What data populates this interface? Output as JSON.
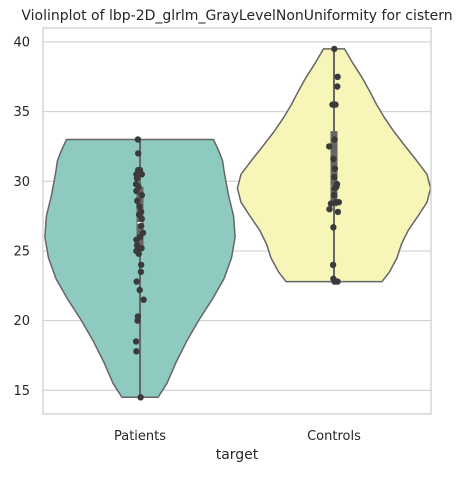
{
  "chart_data": {
    "type": "violin",
    "title": "Violinplot of lbp-2D_glrlm_GrayLevelNonUniformity for cistern",
    "xlabel": "target",
    "ylabel": "",
    "categories": [
      "Patients",
      "Controls"
    ],
    "ylim": [
      13.3,
      41.0
    ],
    "yticks": [
      15,
      20,
      25,
      30,
      35,
      40
    ],
    "grid": true,
    "colors": {
      "Patients": "#8fcac0",
      "Controls": "#f7f6b8",
      "outline": "#666666",
      "points": "#3a3a3a",
      "grid": "#cccccc"
    },
    "series": [
      {
        "name": "Patients",
        "box": {
          "q1": 25.0,
          "median": 27.0,
          "q3": 29.6,
          "whisker_low": 14.5,
          "whisker_high": 33.0
        },
        "violin_profile": [
          [
            14.5,
            0.6
          ],
          [
            15.5,
            0.9
          ],
          [
            17.0,
            1.2
          ],
          [
            18.5,
            1.55
          ],
          [
            20.0,
            1.95
          ],
          [
            21.5,
            2.4
          ],
          [
            23.0,
            2.8
          ],
          [
            24.5,
            3.05
          ],
          [
            26.0,
            3.17
          ],
          [
            27.5,
            3.12
          ],
          [
            29.0,
            2.95
          ],
          [
            30.5,
            2.82
          ],
          [
            31.5,
            2.75
          ],
          [
            32.3,
            2.6
          ],
          [
            33.0,
            2.45
          ]
        ],
        "points": [
          [
            0.02,
            14.5
          ],
          [
            -0.12,
            17.8
          ],
          [
            -0.13,
            18.5
          ],
          [
            -0.08,
            20.0
          ],
          [
            -0.07,
            20.3
          ],
          [
            0.12,
            21.5
          ],
          [
            -0.11,
            22.8
          ],
          [
            -0.01,
            22.2
          ],
          [
            0.03,
            23.5
          ],
          [
            0.04,
            24.0
          ],
          [
            -0.04,
            24.8
          ],
          [
            -0.12,
            25.0
          ],
          [
            0.05,
            25.2
          ],
          [
            -0.1,
            25.4
          ],
          [
            -0.12,
            25.8
          ],
          [
            0.0,
            26.0
          ],
          [
            0.1,
            26.3
          ],
          [
            0.04,
            26.8
          ],
          [
            0.06,
            27.3
          ],
          [
            -0.03,
            27.6
          ],
          [
            0.04,
            27.8
          ],
          [
            -0.02,
            28.2
          ],
          [
            -0.09,
            28.6
          ],
          [
            0.06,
            29.0
          ],
          [
            -0.12,
            29.3
          ],
          [
            -0.05,
            29.6
          ],
          [
            -0.13,
            29.8
          ],
          [
            -0.1,
            30.2
          ],
          [
            -0.12,
            30.5
          ],
          [
            0.06,
            30.5
          ],
          [
            -0.06,
            30.8
          ],
          [
            0.0,
            30.8
          ],
          [
            -0.06,
            32.0
          ],
          [
            -0.07,
            33.0
          ]
        ]
      },
      {
        "name": "Controls",
        "box": {
          "q1": 28.2,
          "median": 29.6,
          "q3": 33.6,
          "whisker_low": 22.8,
          "whisker_high": 39.5
        },
        "violin_profile": [
          [
            22.8,
            1.6
          ],
          [
            23.5,
            1.85
          ],
          [
            24.5,
            2.1
          ],
          [
            25.5,
            2.25
          ],
          [
            26.5,
            2.48
          ],
          [
            27.5,
            2.8
          ],
          [
            28.5,
            3.1
          ],
          [
            29.5,
            3.22
          ],
          [
            30.5,
            3.1
          ],
          [
            31.5,
            2.75
          ],
          [
            32.5,
            2.38
          ],
          [
            33.5,
            2.02
          ],
          [
            34.5,
            1.7
          ],
          [
            35.5,
            1.42
          ],
          [
            36.5,
            1.18
          ],
          [
            37.5,
            0.92
          ],
          [
            38.5,
            0.62
          ],
          [
            39.5,
            0.35
          ]
        ],
        "points": [
          [
            0.02,
            22.8
          ],
          [
            -0.02,
            23.0
          ],
          [
            -0.03,
            24.0
          ],
          [
            0.12,
            22.8
          ],
          [
            -0.02,
            26.7
          ],
          [
            0.13,
            27.8
          ],
          [
            0.06,
            28.5
          ],
          [
            0.16,
            28.5
          ],
          [
            -0.15,
            28.0
          ],
          [
            -0.1,
            28.4
          ],
          [
            0.0,
            29.0
          ],
          [
            0.02,
            29.5
          ],
          [
            0.1,
            29.8
          ],
          [
            0.08,
            29.6
          ],
          [
            0.01,
            30.3
          ],
          [
            0.03,
            30.9
          ],
          [
            -0.02,
            31.6
          ],
          [
            -0.16,
            32.5
          ],
          [
            0.02,
            33.0
          ],
          [
            -0.05,
            35.5
          ],
          [
            0.05,
            35.5
          ],
          [
            0.11,
            36.8
          ],
          [
            0.12,
            37.5
          ],
          [
            0.01,
            39.5
          ]
        ]
      }
    ]
  }
}
